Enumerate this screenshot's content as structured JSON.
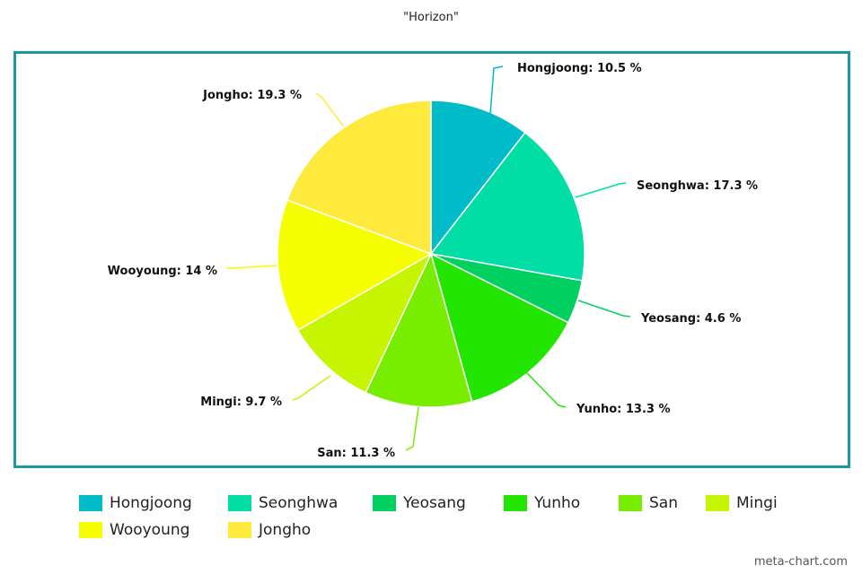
{
  "page": {
    "credit": "meta-chart.com"
  },
  "chart_data": {
    "type": "pie",
    "title": "\"Horizon\"",
    "categories": [
      "Hongjoong",
      "Seonghwa",
      "Yeosang",
      "Yunho",
      "San",
      "Mingi",
      "Wooyoung",
      "Jongho"
    ],
    "values": [
      10.5,
      17.3,
      4.6,
      13.3,
      11.3,
      9.7,
      14,
      19.3
    ],
    "labels": [
      "Hongjoong: 10.5 %",
      "Seonghwa: 17.3 %",
      "Yeosang: 4.6 %",
      "Yunho: 13.3 %",
      "San: 11.3 %",
      "Mingi: 9.7 %",
      "Wooyoung: 14 %",
      "Jongho: 19.3 %"
    ],
    "colors": [
      "#00bcc8",
      "#00dda5",
      "#00d060",
      "#22e600",
      "#77ee00",
      "#c6f500",
      "#f6ff00",
      "#feea3c"
    ],
    "legend": "bottom",
    "frame_color": "#1a9aa0"
  }
}
